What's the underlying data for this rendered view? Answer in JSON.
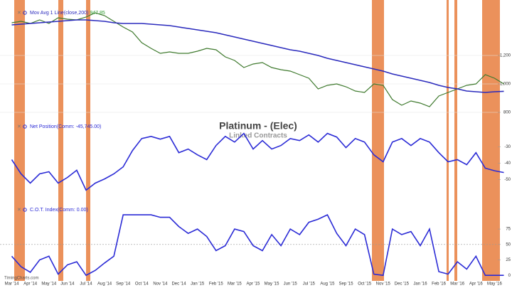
{
  "chart_data": [
    {
      "type": "line",
      "title": "Platinum - (Elec)",
      "subtitle": "Linked Contracts",
      "categories": [
        "Mar '14",
        null,
        "Apr '14",
        null,
        "May '14",
        null,
        "Jun '14",
        null,
        "Jul '14",
        null,
        "Aug '14",
        null,
        "Sep '14",
        null,
        "Oct '14",
        null,
        "Nov '14",
        null,
        "Dec '14",
        null,
        "Jan '15",
        null,
        "Feb '15",
        null,
        "Mar '15",
        null,
        "Apr '15",
        null,
        "May '15",
        null,
        "Jun '15",
        null,
        "Jul '15",
        null,
        "Aug '15",
        null,
        "Sep '15",
        null,
        "Oct '15",
        null,
        "Nov '15",
        null,
        "Dec '15",
        null,
        "Jan '16",
        null,
        "Feb '16",
        null,
        "Mar '16",
        null,
        "Apr '16",
        null,
        "May '16",
        null
      ],
      "series": [
        {
          "color": "#3f7a2e",
          "values": [
            1430,
            1440,
            1425,
            1450,
            1425,
            1465,
            1455,
            1450,
            1470,
            1500,
            1480,
            1440,
            1400,
            1365,
            1290,
            1250,
            1215,
            1225,
            1215,
            1215,
            1230,
            1250,
            1240,
            1190,
            1165,
            1115,
            1140,
            1150,
            1115,
            1100,
            1090,
            1065,
            1040,
            965,
            990,
            1000,
            980,
            950,
            940,
            1000,
            990,
            890,
            850,
            880,
            865,
            840,
            915,
            940,
            965,
            990,
            1000,
            1065,
            1040,
            1000
          ]
        },
        {
          "name": "Mov Avg 1 Line(close,200)",
          "legend_value": "947.85",
          "color": "#2b2bbd",
          "values": [
            1415,
            1420,
            1425,
            1430,
            1435,
            1440,
            1445,
            1450,
            1450,
            1445,
            1440,
            1430,
            1425,
            1425,
            1425,
            1420,
            1415,
            1410,
            1400,
            1390,
            1380,
            1370,
            1360,
            1345,
            1330,
            1315,
            1300,
            1285,
            1270,
            1255,
            1240,
            1230,
            1215,
            1200,
            1180,
            1165,
            1150,
            1135,
            1120,
            1105,
            1090,
            1070,
            1055,
            1040,
            1025,
            1010,
            990,
            975,
            965,
            950,
            945,
            940,
            945,
            947.85
          ]
        }
      ],
      "ylim": [
        765,
        1540
      ],
      "yticks": [
        {
          "value": 1200,
          "label": "1,200"
        },
        {
          "value": 1000,
          "label": "1,000"
        },
        800
      ],
      "grid": true
    },
    {
      "type": "line",
      "series": [
        {
          "name": "Net Position(Comm: -45,745.00)",
          "color": "#2b2bd6",
          "values": [
            -37.8,
            -46.5,
            -52.2,
            -46.5,
            -45.2,
            -52.2,
            -48.7,
            -44.3,
            -56.5,
            -52.2,
            -49.6,
            -46.5,
            -42.2,
            -32.2,
            -24.8,
            -23.5,
            -25.2,
            -23.5,
            -33.5,
            -31.3,
            -34.8,
            -37.8,
            -29.1,
            -23.5,
            -27.0,
            -21.7,
            -31.3,
            -26.1,
            -31.3,
            -29.1,
            -24.8,
            -26.1,
            -22.6,
            -27.0,
            -21.7,
            -23.9,
            -30.4,
            -24.8,
            -27.0,
            -34.8,
            -39.1,
            -27.0,
            -24.8,
            -29.1,
            -24.8,
            -27.0,
            -33.5,
            -39.1,
            -37.8,
            -40.9,
            -33.5,
            -43.0,
            -44.6,
            -45.7
          ]
        }
      ],
      "ylim": [
        -62,
        -14
      ],
      "yticks": [
        -30,
        -40,
        -50
      ]
    },
    {
      "type": "line",
      "series": [
        {
          "name": "C.O.T. Index(Comm: 0.00)",
          "color": "#2b2bd6",
          "values": [
            31,
            14,
            5,
            25,
            31,
            2,
            17,
            22,
            0,
            8,
            20,
            31,
            98,
            98,
            98,
            98,
            94,
            94,
            79,
            68,
            75,
            63,
            40,
            48,
            75,
            71,
            48,
            40,
            66,
            48,
            75,
            66,
            86,
            91,
            98,
            68,
            48,
            75,
            66,
            2,
            0,
            75,
            66,
            71,
            48,
            75,
            6,
            2,
            22,
            10,
            31,
            0,
            0,
            0
          ]
        }
      ],
      "ylim": [
        -9,
        112
      ],
      "yticks": [
        75,
        50,
        25,
        0
      ],
      "threshold": 50
    }
  ],
  "watermark": "TimingCharts.com"
}
